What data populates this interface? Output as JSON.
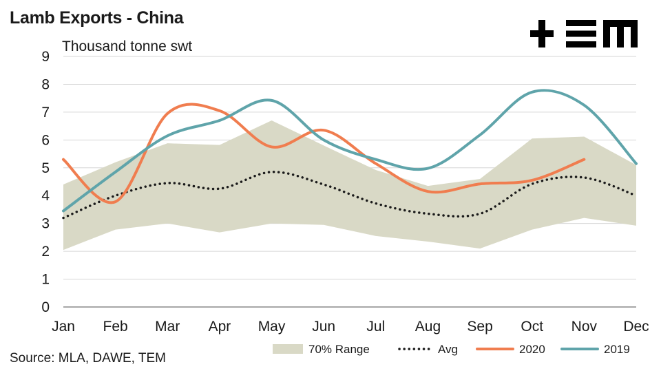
{
  "title": "Lamb Exports - China",
  "unit_label": "Thousand tonne swt",
  "source": "Source: MLA, DAWE, TEM",
  "logo_text": "TEM",
  "chart_data": {
    "type": "line",
    "title": "Lamb Exports - China",
    "ylabel": "Thousand tonne swt",
    "xlabel": "",
    "categories": [
      "Jan",
      "Feb",
      "Mar",
      "Apr",
      "May",
      "Jun",
      "Jul",
      "Aug",
      "Sep",
      "Oct",
      "Nov",
      "Dec"
    ],
    "ylim": [
      0,
      9
    ],
    "yticks": [
      0,
      1,
      2,
      3,
      4,
      5,
      6,
      7,
      8,
      9
    ],
    "grid": true,
    "legend_position": "bottom-right",
    "range": {
      "name": "70% Range",
      "color": "#d9d9c6",
      "low": [
        2.05,
        2.78,
        3.0,
        2.68,
        3.0,
        2.95,
        2.55,
        2.35,
        2.1,
        2.78,
        3.2,
        2.92
      ],
      "high": [
        4.4,
        5.2,
        5.88,
        5.82,
        6.7,
        5.8,
        4.92,
        4.35,
        4.6,
        6.05,
        6.12,
        5.1
      ]
    },
    "series": [
      {
        "name": "Avg",
        "color": "#1a1a1a",
        "style": "dotted",
        "values": [
          3.2,
          4.0,
          4.45,
          4.25,
          4.85,
          4.4,
          3.72,
          3.35,
          3.35,
          4.42,
          4.65,
          4.0
        ]
      },
      {
        "name": "2020",
        "color": "#f07d4f",
        "style": "solid",
        "values": [
          5.3,
          3.78,
          6.95,
          7.05,
          5.75,
          6.35,
          5.15,
          4.15,
          4.42,
          4.55,
          5.3,
          null
        ]
      },
      {
        "name": "2019",
        "color": "#5fa4aa",
        "style": "solid",
        "values": [
          3.45,
          4.85,
          6.15,
          6.7,
          7.42,
          6.0,
          5.3,
          4.98,
          6.18,
          7.72,
          7.25,
          5.15
        ]
      }
    ]
  }
}
